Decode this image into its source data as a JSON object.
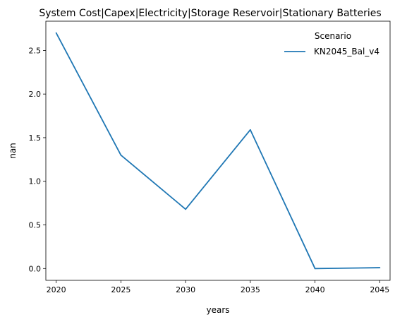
{
  "chart_data": {
    "type": "line",
    "title": "System Cost|Capex|Electricity|Storage Reservoir|Stationary Batteries",
    "xlabel": "years",
    "ylabel": "nan",
    "x": [
      2020,
      2025,
      2030,
      2035,
      2040,
      2045
    ],
    "series": [
      {
        "name": "KN2045_Bal_v4",
        "color": "#1f77b4",
        "values": [
          2.7,
          1.3,
          0.68,
          1.59,
          0.0,
          0.01
        ]
      }
    ],
    "xlim": [
      2019.2,
      2045.8
    ],
    "ylim": [
      -0.135,
      2.835
    ],
    "xticks": [
      2020,
      2025,
      2030,
      2035,
      2040,
      2045
    ],
    "yticks": [
      0.0,
      0.5,
      1.0,
      1.5,
      2.0,
      2.5
    ],
    "ytick_labels": [
      "0.0",
      "0.5",
      "1.0",
      "1.5",
      "2.0",
      "2.5"
    ],
    "grid": false,
    "legend": {
      "title": "Scenario",
      "placement": "top-right"
    }
  }
}
